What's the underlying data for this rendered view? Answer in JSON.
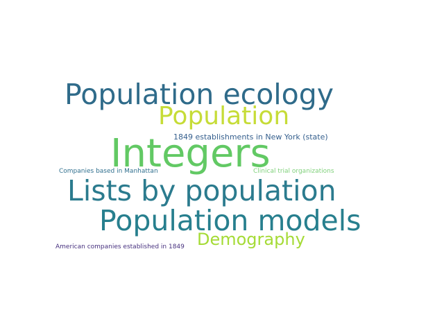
{
  "words": [
    {
      "key": "pop_ecology",
      "text": "Population ecology",
      "color": "#2f6b8a"
    },
    {
      "key": "population",
      "text": "Population",
      "color": "#c6dc37"
    },
    {
      "key": "ny_1849",
      "text": "1849 establishments in New York (state)",
      "color": "#355f8d"
    },
    {
      "key": "integers",
      "text": "Integers",
      "color": "#62c964"
    },
    {
      "key": "manhattan",
      "text": "Companies based in Manhattan",
      "color": "#2f6f8e"
    },
    {
      "key": "clinical",
      "text": "Clinical trial organizations",
      "color": "#7fd07a"
    },
    {
      "key": "lists",
      "text": "Lists by population",
      "color": "#2b7b8e"
    },
    {
      "key": "models",
      "text": "Population models",
      "color": "#277f8e"
    },
    {
      "key": "demography",
      "text": "Demography",
      "color": "#a5db36"
    },
    {
      "key": "american",
      "text": "American companies established in 1849",
      "color": "#46307e"
    }
  ]
}
